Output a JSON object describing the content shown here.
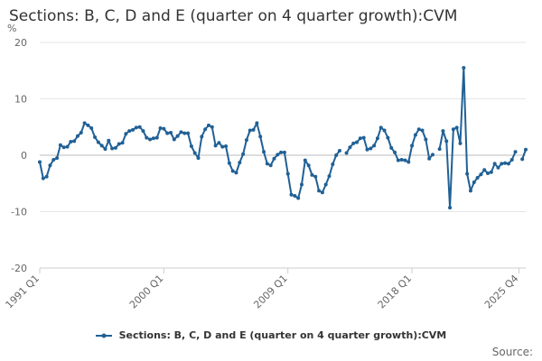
{
  "chart_data": {
    "type": "line",
    "title": "Sections: B, C, D and E (quarter on 4 quarter growth):CVM",
    "ylabel": "%",
    "ylim": [
      -20,
      20
    ],
    "yticks": [
      -20,
      -10,
      0,
      10,
      20
    ],
    "x_tick_labels": [
      "1991 Q1",
      "2000 Q1",
      "2009 Q1",
      "2018 Q1",
      "2025 Q4"
    ],
    "x_start": "1991 Q1",
    "x_end": "2025 Q4",
    "grid": true,
    "legend_position": "bottom",
    "series": [
      {
        "name": "Sections: B, C, D and E (quarter on 4 quarter growth):CVM",
        "color": "#206095",
        "values": [
          -1.2,
          -4.1,
          -3.8,
          -1.8,
          -0.8,
          -0.5,
          1.8,
          1.4,
          1.5,
          2.4,
          2.5,
          3.4,
          4.0,
          5.7,
          5.3,
          4.8,
          3.2,
          2.3,
          1.7,
          1.1,
          2.6,
          1.2,
          1.3,
          2.0,
          2.2,
          3.8,
          4.3,
          4.5,
          4.9,
          5.0,
          4.3,
          3.1,
          2.8,
          3.0,
          3.1,
          4.8,
          4.7,
          3.9,
          4.0,
          2.8,
          3.4,
          4.1,
          3.9,
          3.9,
          1.6,
          0.4,
          -0.5,
          3.3,
          4.6,
          5.3,
          5.0,
          1.7,
          2.2,
          1.5,
          1.6,
          -1.4,
          -2.8,
          -3.1,
          -1.3,
          0.2,
          2.7,
          4.4,
          4.5,
          5.7,
          3.3,
          0.6,
          -1.5,
          -1.8,
          -0.6,
          0.1,
          0.5,
          0.5,
          -3.3,
          -7.0,
          -7.2,
          -7.6,
          -5.2,
          -0.9,
          -1.8,
          -3.5,
          -3.8,
          -6.3,
          -6.6,
          -5.2,
          -3.7,
          -1.6,
          0.0,
          0.8,
          null,
          0.4,
          1.4,
          2.1,
          2.3,
          3.0,
          3.1,
          1.0,
          1.2,
          1.7,
          3.0,
          4.9,
          4.4,
          3.1,
          1.3,
          0.5,
          -0.9,
          -0.8,
          -0.9,
          -1.2,
          1.7,
          3.6,
          4.6,
          4.4,
          2.8,
          -0.6,
          0.1,
          null,
          1.1,
          4.3,
          2.5,
          -9.3,
          4.6,
          4.9,
          2.1,
          15.5,
          -3.3,
          -6.3,
          -4.8,
          -4.0,
          -3.4,
          -2.6,
          -3.2,
          -3.0,
          -1.5,
          -2.2,
          -1.5,
          -1.4,
          -1.5,
          -0.8,
          0.6,
          null,
          -0.7,
          1.0
        ]
      }
    ]
  },
  "credits": "Source:"
}
